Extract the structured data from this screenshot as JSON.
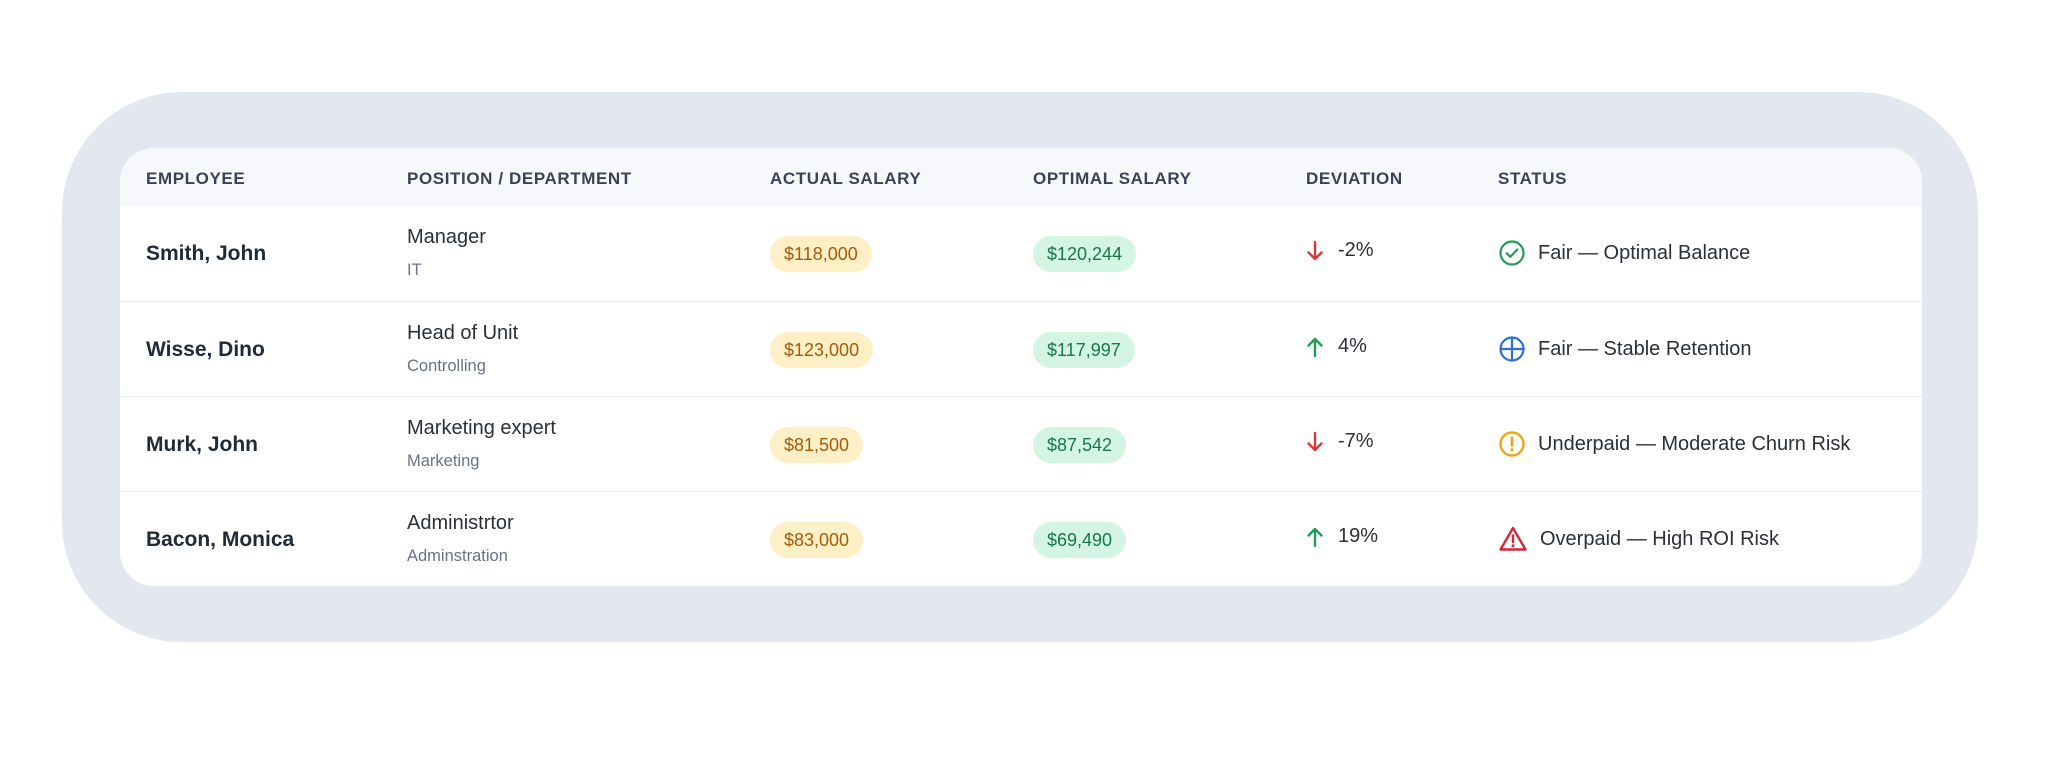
{
  "table": {
    "headers": [
      "EMPLOYEE",
      "POSITION / DEPARTMENT",
      "ACTUAL SALARY",
      "OPTIMAL SALARY",
      "DEVIATION",
      "STATUS"
    ],
    "rows": [
      {
        "employee": "Smith, John",
        "position": "Manager",
        "department": "IT",
        "actual_salary": "$118,000",
        "optimal_salary": "$120,244",
        "deviation": "-2%",
        "deviation_direction": "down",
        "status": "Fair — Optimal Balance",
        "status_icon": "check-circle-icon"
      },
      {
        "employee": "Wisse, Dino",
        "position": "Head of Unit",
        "department": "Controlling",
        "actual_salary": "$123,000",
        "optimal_salary": "$117,997",
        "deviation": "4%",
        "deviation_direction": "up",
        "status": "Fair — Stable Retention",
        "status_icon": "crosshair-circle-icon"
      },
      {
        "employee": "Murk, John",
        "position": "Marketing expert",
        "department": "Marketing",
        "actual_salary": "$81,500",
        "optimal_salary": "$87,542",
        "deviation": "-7%",
        "deviation_direction": "down",
        "status": "Underpaid — Moderate Churn Risk",
        "status_icon": "exclamation-circle-icon"
      },
      {
        "employee": "Bacon, Monica",
        "position": "Administrtor",
        "department": "Adminstration",
        "actual_salary": "$83,000",
        "optimal_salary": "$69,490",
        "deviation": "19%",
        "deviation_direction": "up",
        "status": "Overpaid — High ROI Risk",
        "status_icon": "warning-triangle-icon"
      }
    ]
  },
  "colors": {
    "frame": "#e3e7ef",
    "header_bg": "#f7f8fb",
    "actual_pill_bg": "#fdf0c6",
    "actual_pill_text": "#a85a08",
    "optimal_pill_bg": "#d4f5e4",
    "optimal_pill_text": "#16784a",
    "arrow_down": "#d9363e",
    "arrow_up": "#1f9d55",
    "status_fair_optimal": "#1f9d55",
    "status_fair_stable": "#2b6fd6",
    "status_underpaid": "#e6a817",
    "status_overpaid": "#d0283a"
  }
}
